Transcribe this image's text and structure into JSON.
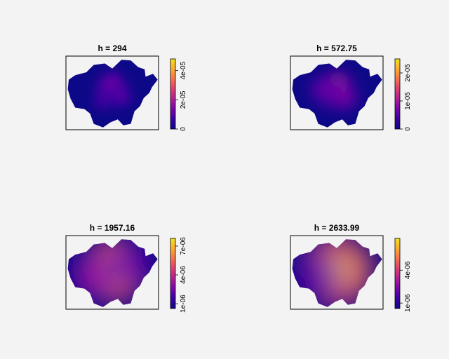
{
  "figure": {
    "background": "#f4f3f3"
  },
  "palette": [
    "#0d0887",
    "#3c00a3",
    "#7a05a8",
    "#b01e95",
    "#dd3e6f",
    "#f5724b",
    "#fdab2d",
    "#f1e21a"
  ],
  "chart_data": [
    {
      "type": "heatmap",
      "title": "h = 294",
      "bandwidth": 294,
      "colorbar": {
        "range": [
          0,
          4.8e-05
        ],
        "ticks": [
          0,
          2e-05,
          4e-05
        ],
        "tick_labels": [
          "0",
          "2e-05",
          "4e-05"
        ]
      },
      "hotspots": [
        {
          "cx": 0.45,
          "cy": 0.42,
          "strength": 0.35
        },
        {
          "cx": 0.55,
          "cy": 0.45,
          "strength": 0.35
        },
        {
          "cx": 0.5,
          "cy": 0.35,
          "strength": 0.3
        },
        {
          "cx": 0.6,
          "cy": 0.55,
          "strength": 0.25
        },
        {
          "cx": 0.4,
          "cy": 0.6,
          "strength": 0.2
        }
      ]
    },
    {
      "type": "heatmap",
      "title": "h = 572.75",
      "bandwidth": 572.75,
      "colorbar": {
        "range": [
          0,
          2.5e-05
        ],
        "ticks": [
          0,
          1e-05,
          2e-05
        ],
        "tick_labels": [
          "0",
          "1e-05",
          "2e-05"
        ]
      },
      "hotspots": [
        {
          "cx": 0.5,
          "cy": 0.42,
          "strength": 0.55
        },
        {
          "cx": 0.42,
          "cy": 0.5,
          "strength": 0.4
        },
        {
          "cx": 0.58,
          "cy": 0.55,
          "strength": 0.35
        },
        {
          "cx": 0.35,
          "cy": 0.45,
          "strength": 0.3
        }
      ]
    },
    {
      "type": "heatmap",
      "title": "h = 1957.16",
      "bandwidth": 1957.16,
      "colorbar": {
        "range": [
          5e-07,
          7.8e-06
        ],
        "ticks": [
          1e-06,
          4e-06,
          7e-06
        ],
        "tick_labels": [
          "1e-06",
          "4e-06",
          "7e-06"
        ]
      },
      "hotspots": [
        {
          "cx": 0.52,
          "cy": 0.47,
          "strength": 1.0
        },
        {
          "cx": 0.3,
          "cy": 0.55,
          "strength": 0.45
        },
        {
          "cx": 0.7,
          "cy": 0.4,
          "strength": 0.35
        }
      ]
    },
    {
      "type": "heatmap",
      "title": "h = 2633.99",
      "bandwidth": 2633.99,
      "colorbar": {
        "range": [
          5e-07,
          6.9e-06
        ],
        "ticks": [
          1e-06,
          4e-06
        ],
        "tick_labels": [
          "1e-06",
          "4e-06"
        ]
      },
      "hotspots": [
        {
          "cx": 0.5,
          "cy": 0.48,
          "strength": 1.0
        },
        {
          "cx": 0.32,
          "cy": 0.55,
          "strength": 0.35
        }
      ]
    }
  ]
}
